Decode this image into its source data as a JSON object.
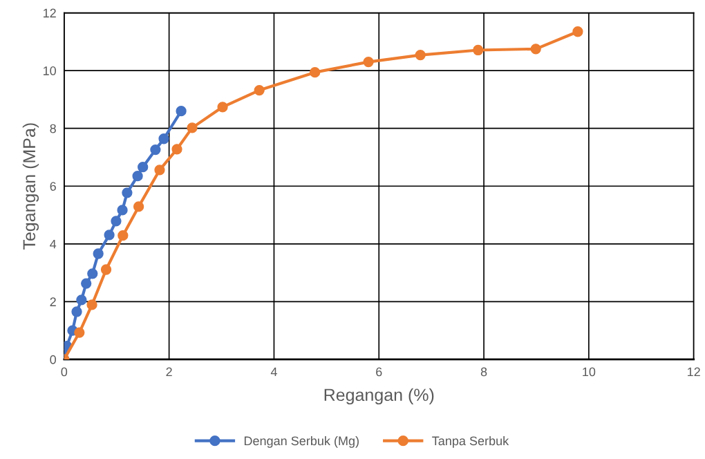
{
  "chart_data": {
    "type": "line",
    "xlabel": "Regangan (%)",
    "ylabel": "Tegangan (MPa)",
    "xlim": [
      0,
      12
    ],
    "xticks": [
      0,
      2,
      4,
      6,
      8,
      10,
      12
    ],
    "ylim": [
      0,
      12
    ],
    "yticks": [
      0,
      2,
      4,
      6,
      8,
      10,
      12
    ],
    "grid": true,
    "legend": "bottom",
    "marker": "circle",
    "line_style": "solid",
    "series": [
      {
        "name": "Dengan Serbuk (Mg)",
        "color": "#4472c4",
        "x": [
          0,
          0.05,
          0.16,
          0.24,
          0.33,
          0.42,
          0.54,
          0.65,
          0.86,
          0.99,
          1.11,
          1.2,
          1.4,
          1.5,
          1.74,
          1.9,
          2.23
        ],
        "values": [
          0,
          0.46,
          1.0,
          1.65,
          2.06,
          2.63,
          2.97,
          3.66,
          4.31,
          4.79,
          5.17,
          5.77,
          6.35,
          6.66,
          7.26,
          7.64,
          8.6
        ]
      },
      {
        "name": "Tanpa Serbuk",
        "color": "#ed7d31",
        "x": [
          0,
          0.29,
          0.53,
          0.8,
          1.12,
          1.42,
          1.82,
          2.15,
          2.44,
          3.02,
          3.72,
          4.78,
          5.8,
          6.79,
          7.89,
          8.99,
          9.79
        ],
        "values": [
          0,
          0.93,
          1.89,
          3.11,
          4.29,
          5.29,
          6.56,
          7.28,
          8.02,
          8.74,
          9.32,
          9.94,
          10.3,
          10.54,
          10.71,
          10.75,
          11.35
        ]
      }
    ]
  }
}
